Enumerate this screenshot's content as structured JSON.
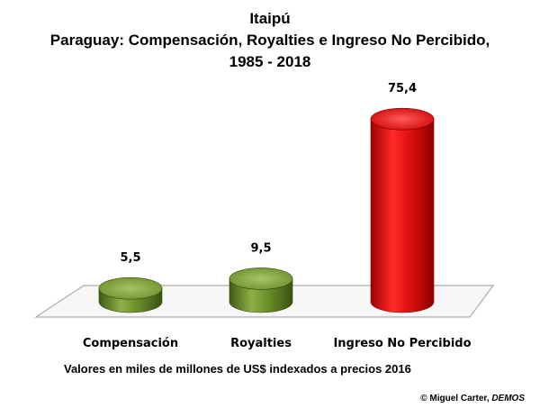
{
  "header": {
    "title_line1": "Itaipú",
    "title_line2": "Paraguay: Compensación, Royalties e Ingreso No Percibido,",
    "title_line3": "1985 - 2018"
  },
  "footer": {
    "note": "Valores en miles de millones de US$ indexados a precios 2016",
    "credit_prefix": "© Miguel Carter, ",
    "credit_org": "DEMOS"
  },
  "colors": {
    "green": "#6b8f2a",
    "red": "#e01010"
  },
  "chart_data": {
    "type": "bar",
    "categories": [
      "Compensación",
      "Royalties",
      "Ingreso No Percibido"
    ],
    "values": [
      5.5,
      9.5,
      75.4
    ],
    "value_labels": [
      "5,5",
      "9,5",
      "75,4"
    ],
    "colors": [
      "#6b8f2a",
      "#6b8f2a",
      "#e01010"
    ],
    "title": "Itaipú Paraguay: Compensación, Royalties e Ingreso No Percibido, 1985 - 2018",
    "xlabel": "",
    "ylabel": "",
    "grid": false,
    "legend": "none"
  }
}
